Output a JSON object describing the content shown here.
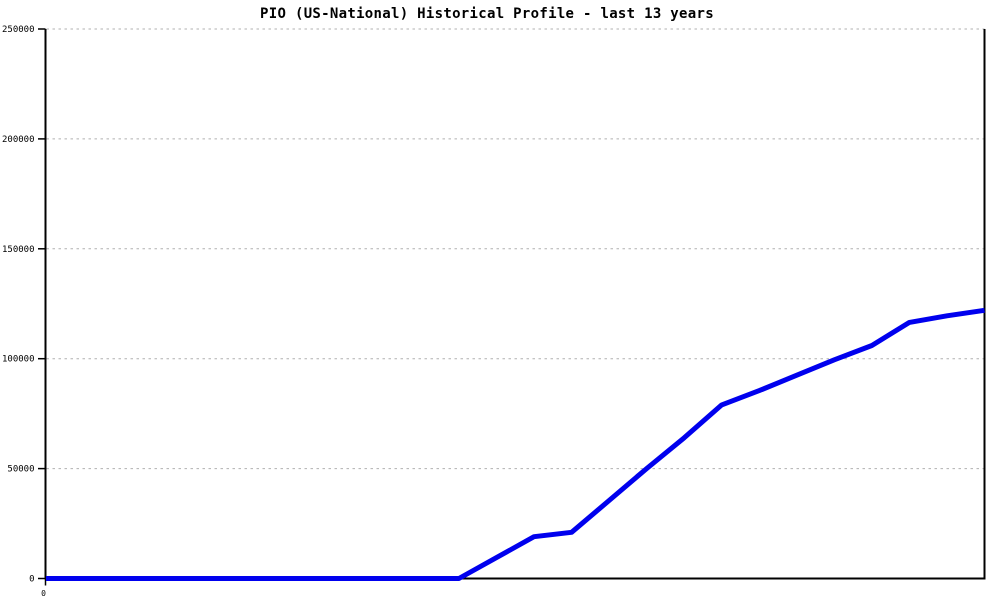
{
  "colors": {
    "background": "#ffffff",
    "line": "#0000ee",
    "grid": "#b0b0b0",
    "axis": "#000000",
    "text": "#000000"
  },
  "chart_data": {
    "type": "line",
    "title": "PIO (US-National) Historical Profile - last 13 years",
    "xlabel": "",
    "ylabel": "",
    "ylim": [
      0,
      250000
    ],
    "yticks": [
      0,
      50000,
      100000,
      150000,
      200000,
      250000
    ],
    "ytick_labels": [
      "0",
      "50000",
      "100000",
      "150000",
      "200000",
      "250000"
    ],
    "x_origin_tick_label": "0",
    "grid": "horizontal-dotted",
    "legend_position": "none",
    "x_years_from_start": [
      0,
      0.5,
      1,
      1.5,
      2,
      2.5,
      3,
      3.5,
      4,
      4.5,
      5,
      5.5,
      6,
      6.5,
      7,
      7.5,
      8,
      8.5,
      9,
      9.5,
      10,
      10.5,
      11,
      11.5,
      12,
      12.5
    ],
    "series": [
      {
        "name": "PIO (US-National) historical profile",
        "color": "#0000ee",
        "values": [
          0,
          0,
          0,
          0,
          0,
          0,
          0,
          0,
          0,
          0,
          0,
          0,
          9500,
          19000,
          21000,
          35500,
          50000,
          64000,
          79000,
          85500,
          92500,
          99500,
          106000,
          116500,
          119500,
          122000
        ]
      }
    ]
  }
}
